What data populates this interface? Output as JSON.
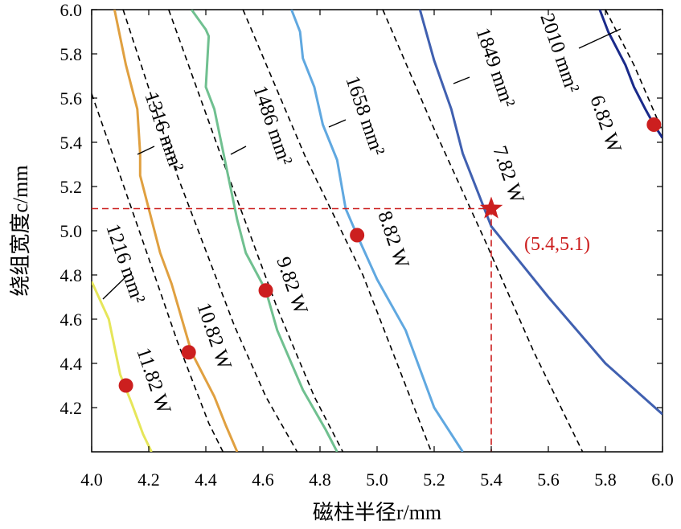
{
  "chart_data": {
    "type": "line",
    "title": "",
    "xlabel": "磁柱半径r/mm",
    "ylabel": "绕组宽度c/mm",
    "xlim": [
      4.0,
      6.0
    ],
    "ylim": [
      4.0,
      6.0
    ],
    "x_ticks": [
      "4.0",
      "4.2",
      "4.4",
      "4.6",
      "4.8",
      "5.0",
      "5.2",
      "5.4",
      "5.6",
      "5.8",
      "6.0"
    ],
    "y_ticks": [
      "4.2",
      "4.4",
      "4.6",
      "4.8",
      "5.0",
      "5.2",
      "5.4",
      "5.6",
      "5.8",
      "6.0"
    ],
    "grid": false,
    "loss_contours": [
      {
        "label": "11.82 W",
        "color": "#e6e65a",
        "points": [
          [
            4.0,
            4.77
          ],
          [
            4.06,
            4.6
          ],
          [
            4.1,
            4.35
          ],
          [
            4.14,
            4.22
          ],
          [
            4.18,
            4.08
          ],
          [
            4.21,
            4.0
          ]
        ]
      },
      {
        "label": "10.82 W",
        "color": "#e0a040",
        "points": [
          [
            4.08,
            6.0
          ],
          [
            4.12,
            5.75
          ],
          [
            4.16,
            5.55
          ],
          [
            4.17,
            5.35
          ],
          [
            4.17,
            5.25
          ],
          [
            4.2,
            5.1
          ],
          [
            4.24,
            4.9
          ],
          [
            4.28,
            4.76
          ],
          [
            4.35,
            4.45
          ],
          [
            4.43,
            4.25
          ],
          [
            4.47,
            4.12
          ],
          [
            4.51,
            4.0
          ]
        ]
      },
      {
        "label": "9.82 W",
        "color": "#70c090",
        "points": [
          [
            4.35,
            6.0
          ],
          [
            4.4,
            5.91
          ],
          [
            4.41,
            5.88
          ],
          [
            4.4,
            5.65
          ],
          [
            4.43,
            5.55
          ],
          [
            4.47,
            5.3
          ],
          [
            4.51,
            5.05
          ],
          [
            4.54,
            4.9
          ],
          [
            4.61,
            4.73
          ],
          [
            4.65,
            4.55
          ],
          [
            4.74,
            4.28
          ],
          [
            4.82,
            4.1
          ],
          [
            4.86,
            4.0
          ]
        ]
      },
      {
        "label": "8.82 W",
        "color": "#60a8e0",
        "points": [
          [
            4.7,
            6.0
          ],
          [
            4.73,
            5.9
          ],
          [
            4.74,
            5.78
          ],
          [
            4.78,
            5.65
          ],
          [
            4.81,
            5.48
          ],
          [
            4.86,
            5.32
          ],
          [
            4.89,
            5.1
          ],
          [
            4.93,
            4.98
          ],
          [
            5.0,
            4.78
          ],
          [
            5.1,
            4.55
          ],
          [
            5.2,
            4.2
          ],
          [
            5.3,
            4.0
          ]
        ]
      },
      {
        "label": "7.82 W",
        "color": "#4060b0",
        "points": [
          [
            5.15,
            6.0
          ],
          [
            5.2,
            5.77
          ],
          [
            5.26,
            5.55
          ],
          [
            5.3,
            5.35
          ],
          [
            5.4,
            5.02
          ],
          [
            5.6,
            4.7
          ],
          [
            5.8,
            4.4
          ],
          [
            6.0,
            4.17
          ]
        ]
      },
      {
        "label": "6.82 W",
        "color": "#1a2a8a",
        "points": [
          [
            5.78,
            6.0
          ],
          [
            5.81,
            5.9
          ],
          [
            5.87,
            5.75
          ],
          [
            5.9,
            5.65
          ],
          [
            5.94,
            5.55
          ],
          [
            5.97,
            5.48
          ],
          [
            6.0,
            5.42
          ]
        ]
      }
    ],
    "area_contours": [
      {
        "label": "1216 mm²",
        "points": [
          [
            4.0,
            5.62
          ],
          [
            4.18,
            4.95
          ],
          [
            4.3,
            4.5
          ],
          [
            4.41,
            4.13
          ],
          [
            4.46,
            4.0
          ]
        ]
      },
      {
        "label": "1316 mm²",
        "points": [
          [
            4.11,
            6.0
          ],
          [
            4.3,
            5.25
          ],
          [
            4.5,
            4.57
          ],
          [
            4.61,
            4.25
          ],
          [
            4.72,
            4.0
          ]
        ]
      },
      {
        "label": "1486 mm²",
        "points": [
          [
            4.27,
            6.0
          ],
          [
            4.45,
            5.35
          ],
          [
            4.65,
            4.65
          ],
          [
            4.78,
            4.25
          ],
          [
            4.88,
            4.0
          ]
        ]
      },
      {
        "label": "1658 mm²",
        "points": [
          [
            4.53,
            6.0
          ],
          [
            4.75,
            5.33
          ],
          [
            4.95,
            4.8
          ],
          [
            5.1,
            4.3
          ],
          [
            5.19,
            4.0
          ]
        ]
      },
      {
        "label": "1849 mm²",
        "points": [
          [
            5.02,
            6.0
          ],
          [
            5.2,
            5.46
          ],
          [
            5.38,
            4.95
          ],
          [
            5.55,
            4.45
          ],
          [
            5.72,
            4.0
          ]
        ]
      },
      {
        "label": "2010 mm²",
        "points": [
          [
            5.8,
            6.0
          ],
          [
            5.9,
            5.75
          ],
          [
            6.0,
            5.45
          ]
        ]
      }
    ],
    "marked_points": [
      [
        4.12,
        4.3
      ],
      [
        4.34,
        4.45
      ],
      [
        4.61,
        4.73
      ],
      [
        4.93,
        4.98
      ],
      [
        5.97,
        5.48
      ]
    ],
    "optimum": {
      "x": 5.4,
      "y": 5.1,
      "label": "(5.4,5.1)",
      "color": "#cc1f1f"
    }
  }
}
